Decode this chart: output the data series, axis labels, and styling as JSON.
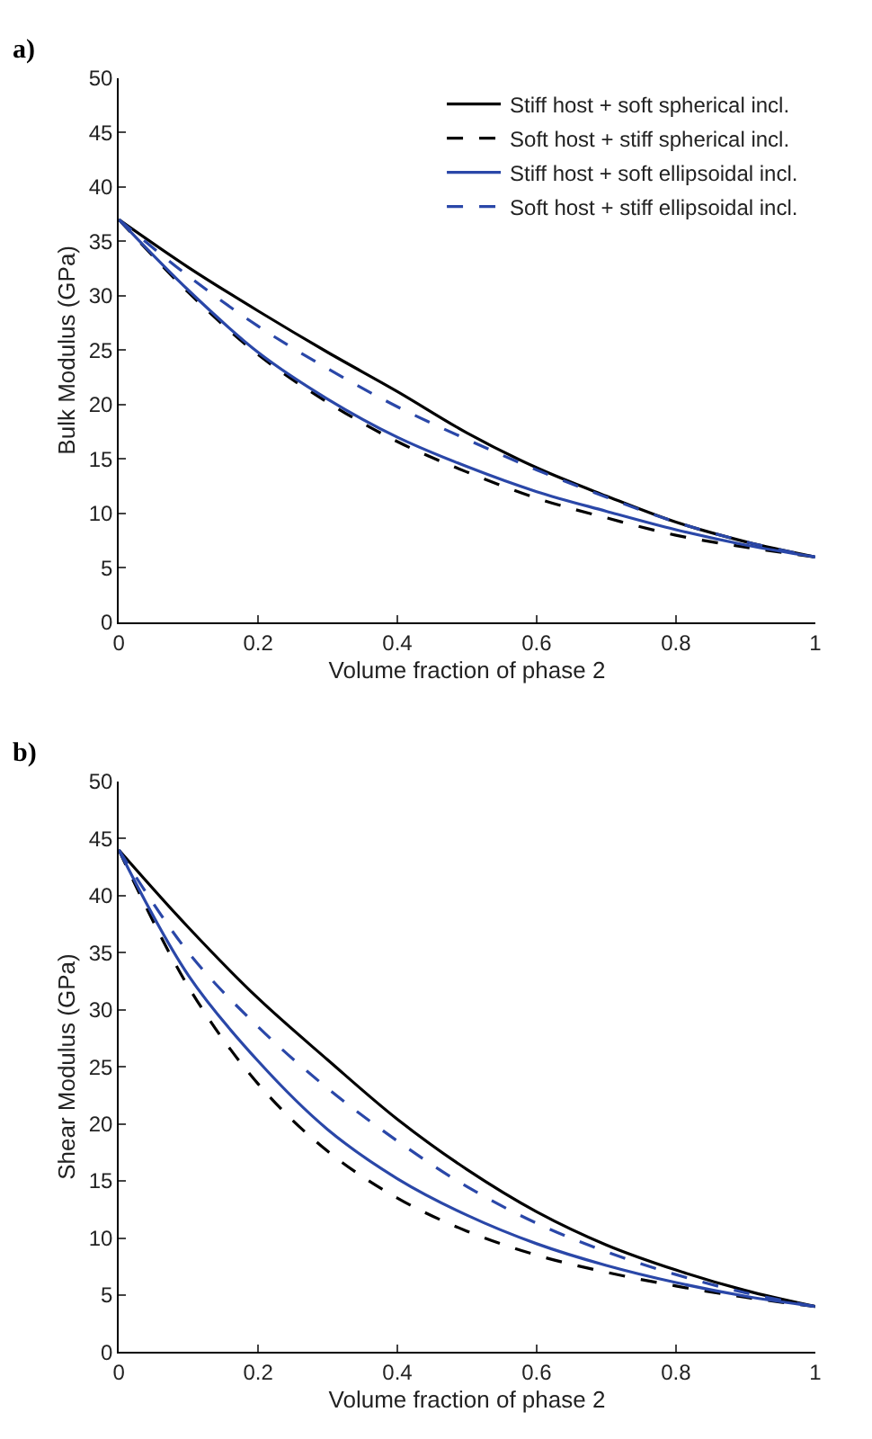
{
  "chart_data": [
    {
      "type": "line",
      "title": "a)",
      "xlabel": "Volume fraction of phase 2",
      "ylabel": "Bulk Modulus (GPa)",
      "x": [
        0,
        0.1,
        0.2,
        0.3,
        0.4,
        0.5,
        0.6,
        0.7,
        0.8,
        0.9,
        1
      ],
      "xlim": [
        0,
        1
      ],
      "xticks": [
        0,
        0.2,
        0.4,
        0.6,
        0.8,
        1
      ],
      "ylim": [
        0,
        50
      ],
      "yticks": [
        0,
        5,
        10,
        15,
        20,
        25,
        30,
        35,
        40,
        45,
        50
      ],
      "legend": "top right",
      "marker": "none",
      "series": [
        {
          "name": "Stiff host + soft spherical incl.",
          "color": "#000000",
          "line_style": "solid",
          "values": [
            37,
            32.6,
            28.6,
            24.8,
            21.2,
            17.4,
            14.2,
            11.6,
            9.2,
            7.4,
            6
          ]
        },
        {
          "name": "Soft host + stiff spherical incl.",
          "color": "#000000",
          "line_style": "dashed",
          "values": [
            37,
            30.3,
            24.6,
            20.2,
            16.6,
            13.8,
            11.4,
            9.6,
            8.0,
            6.9,
            6
          ]
        },
        {
          "name": "Stiff host + soft ellipsoidal incl.",
          "color": "#2a47a8",
          "line_style": "solid",
          "values": [
            37,
            30.5,
            24.8,
            20.5,
            17.0,
            14.3,
            12.0,
            10.2,
            8.5,
            7.1,
            6
          ]
        },
        {
          "name": "Soft host + stiff ellipsoidal incl.",
          "color": "#2a47a8",
          "line_style": "dashed",
          "values": [
            37,
            31.8,
            27.2,
            23.3,
            19.8,
            16.8,
            14.0,
            11.5,
            9.2,
            7.4,
            6
          ]
        }
      ]
    },
    {
      "type": "line",
      "title": "b)",
      "xlabel": "Volume fraction of phase 2",
      "ylabel": "Shear Modulus (GPa)",
      "x": [
        0,
        0.1,
        0.2,
        0.3,
        0.4,
        0.5,
        0.6,
        0.7,
        0.8,
        0.9,
        1
      ],
      "xlim": [
        0,
        1
      ],
      "xticks": [
        0,
        0.2,
        0.4,
        0.6,
        0.8,
        1
      ],
      "ylim": [
        0,
        50
      ],
      "yticks": [
        0,
        5,
        10,
        15,
        20,
        25,
        30,
        35,
        40,
        45,
        50
      ],
      "marker": "none",
      "series": [
        {
          "color": "#000000",
          "line_style": "solid",
          "values": [
            44,
            37.2,
            31.0,
            25.6,
            20.4,
            16.0,
            12.3,
            9.4,
            7.2,
            5.4,
            4
          ]
        },
        {
          "color": "#000000",
          "line_style": "dashed",
          "values": [
            44,
            32.0,
            23.5,
            17.6,
            13.5,
            10.6,
            8.5,
            7.0,
            5.8,
            4.8,
            4
          ]
        },
        {
          "color": "#2a47a8",
          "line_style": "solid",
          "values": [
            44,
            33.0,
            25.5,
            19.5,
            15.2,
            12.0,
            9.5,
            7.6,
            6.1,
            4.9,
            4
          ]
        },
        {
          "color": "#2a47a8",
          "line_style": "dashed",
          "values": [
            44,
            35.0,
            28.5,
            23.1,
            18.5,
            14.5,
            11.3,
            8.8,
            6.8,
            5.2,
            4
          ]
        }
      ]
    }
  ]
}
